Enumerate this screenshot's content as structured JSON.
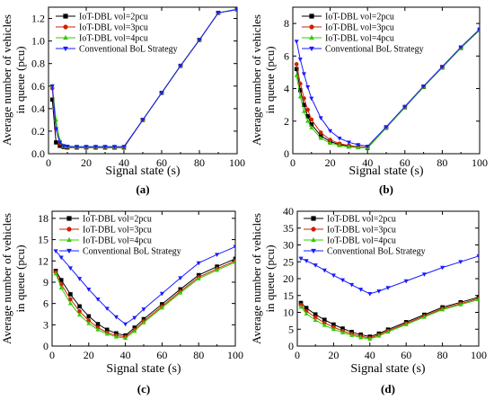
{
  "colors": {
    "s1": "#000000",
    "s2": "#cc2200",
    "s3": "#33cc00",
    "s4": "#1a1aff"
  },
  "chart_data": [
    {
      "panel_label": "(a)",
      "type": "line",
      "xlabel": "Signal state (s)",
      "ylabel_line1": "Average number of vehicles",
      "ylabel_line2": "in queue (pcu)",
      "xlim": [
        0,
        100
      ],
      "ylim": [
        0,
        1.3
      ],
      "xticks": [
        0,
        20,
        40,
        60,
        80,
        100
      ],
      "yticks": [
        0.0,
        0.2,
        0.4,
        0.6,
        0.8,
        1.0,
        1.2
      ],
      "ytick_labels": [
        "0.0",
        "0.2",
        "0.4",
        "0.6",
        "0.8",
        "1.0",
        "1.2"
      ],
      "legend_position": "top-left",
      "series": [
        {
          "name": "IoT-DBL vol=2pcu",
          "marker": "square",
          "color_key": "s1",
          "x": [
            2,
            4,
            6,
            8,
            10,
            15,
            20,
            25,
            30,
            35,
            40,
            50,
            60,
            70,
            80,
            90,
            100
          ],
          "y": [
            0.48,
            0.1,
            0.07,
            0.06,
            0.055,
            0.055,
            0.055,
            0.055,
            0.055,
            0.055,
            0.055,
            0.3,
            0.54,
            0.78,
            1.01,
            1.25,
            1.28
          ]
        },
        {
          "name": "IoT-DBL vol=3pcu",
          "marker": "circle",
          "color_key": "s2",
          "x": [
            2,
            4,
            6,
            8,
            10,
            15,
            20,
            25,
            30,
            35,
            40,
            50,
            60,
            70,
            80,
            90,
            100
          ],
          "y": [
            0.58,
            0.22,
            0.09,
            0.065,
            0.06,
            0.058,
            0.058,
            0.058,
            0.058,
            0.058,
            0.058,
            0.3,
            0.54,
            0.78,
            1.01,
            1.25,
            1.28
          ]
        },
        {
          "name": "IoT-DBL vol=4pcu",
          "marker": "triangle-up",
          "color_key": "s3",
          "x": [
            2,
            4,
            6,
            8,
            10,
            15,
            20,
            25,
            30,
            35,
            40,
            50,
            60,
            70,
            80,
            90,
            100
          ],
          "y": [
            0.6,
            0.3,
            0.12,
            0.07,
            0.062,
            0.06,
            0.06,
            0.06,
            0.06,
            0.06,
            0.06,
            0.3,
            0.54,
            0.78,
            1.01,
            1.25,
            1.28
          ]
        },
        {
          "name": "Conventional BoL Strategy",
          "marker": "triangle-down",
          "color_key": "s4",
          "x": [
            2,
            4,
            6,
            8,
            10,
            15,
            20,
            25,
            30,
            35,
            40,
            50,
            60,
            70,
            80,
            90,
            100
          ],
          "y": [
            0.6,
            0.22,
            0.1,
            0.07,
            0.065,
            0.063,
            0.063,
            0.063,
            0.063,
            0.063,
            0.063,
            0.3,
            0.54,
            0.78,
            1.01,
            1.25,
            1.28
          ]
        }
      ]
    },
    {
      "panel_label": "(b)",
      "type": "line",
      "xlabel": "Signal state (s)",
      "ylabel_line1": "Average number of vehicles",
      "ylabel_line2": "in queue (pcu)",
      "xlim": [
        0,
        100
      ],
      "ylim": [
        0,
        9
      ],
      "xticks": [
        0,
        20,
        40,
        60,
        80,
        100
      ],
      "yticks": [
        0,
        2,
        4,
        6,
        8
      ],
      "ytick_labels": [
        "0",
        "2",
        "4",
        "6",
        "8"
      ],
      "legend_position": "top-center",
      "series": [
        {
          "name": "IoT-DBL vol=2pcu",
          "marker": "square",
          "color_key": "s1",
          "x": [
            2,
            4,
            6,
            8,
            10,
            15,
            20,
            25,
            30,
            35,
            40,
            50,
            60,
            70,
            80,
            90,
            100
          ],
          "y": [
            5.2,
            3.9,
            3.0,
            2.3,
            1.8,
            1.1,
            0.75,
            0.55,
            0.45,
            0.4,
            0.35,
            1.6,
            2.85,
            4.1,
            5.3,
            6.5,
            7.6
          ]
        },
        {
          "name": "IoT-DBL vol=3pcu",
          "marker": "circle",
          "color_key": "s2",
          "x": [
            2,
            4,
            6,
            8,
            10,
            15,
            20,
            25,
            30,
            35,
            40,
            50,
            60,
            70,
            80,
            90,
            100
          ],
          "y": [
            5.5,
            4.3,
            3.4,
            2.7,
            2.1,
            1.3,
            0.85,
            0.62,
            0.5,
            0.43,
            0.37,
            1.6,
            2.85,
            4.1,
            5.3,
            6.5,
            7.6
          ]
        },
        {
          "name": "IoT-DBL vol=4pcu",
          "marker": "triangle-up",
          "color_key": "s3",
          "x": [
            2,
            4,
            6,
            8,
            10,
            15,
            20,
            25,
            30,
            35,
            40,
            50,
            60,
            70,
            80,
            90,
            100
          ],
          "y": [
            4.8,
            3.5,
            2.6,
            2.0,
            1.6,
            0.95,
            0.65,
            0.5,
            0.42,
            0.38,
            0.35,
            1.6,
            2.85,
            4.1,
            5.3,
            6.5,
            7.6
          ]
        },
        {
          "name": "Conventional BoL Strategy",
          "marker": "triangle-down",
          "color_key": "s4",
          "x": [
            2,
            4,
            6,
            8,
            10,
            15,
            20,
            25,
            30,
            35,
            40,
            50,
            60,
            70,
            80,
            90,
            100
          ],
          "y": [
            6.9,
            5.8,
            4.9,
            4.1,
            3.4,
            2.2,
            1.4,
            0.95,
            0.7,
            0.55,
            0.45,
            1.65,
            2.9,
            4.15,
            5.35,
            6.55,
            7.65
          ]
        }
      ]
    },
    {
      "panel_label": "(c)",
      "type": "line",
      "xlabel": "Signal state (s)",
      "ylabel_line1": "Average number of vehicles",
      "ylabel_line2": "in queue (pcu)",
      "xlim": [
        0,
        100
      ],
      "ylim": [
        0,
        19
      ],
      "xticks": [
        0,
        20,
        40,
        60,
        80,
        100
      ],
      "yticks": [
        0,
        3,
        6,
        9,
        12,
        15,
        18
      ],
      "ytick_labels": [
        "0",
        "3",
        "6",
        "9",
        "12",
        "15",
        "18"
      ],
      "legend_position": "top-center",
      "series": [
        {
          "name": "IoT-DBL vol=2pcu",
          "marker": "square",
          "color_key": "s1",
          "x": [
            2,
            5,
            10,
            15,
            20,
            25,
            30,
            35,
            40,
            45,
            50,
            60,
            70,
            80,
            90,
            100
          ],
          "y": [
            10.6,
            9.3,
            7.3,
            5.6,
            4.2,
            3.1,
            2.3,
            1.8,
            1.5,
            2.6,
            3.8,
            5.9,
            8.0,
            10.0,
            11.2,
            12.3
          ]
        },
        {
          "name": "IoT-DBL vol=3pcu",
          "marker": "circle",
          "color_key": "s2",
          "x": [
            2,
            5,
            10,
            15,
            20,
            25,
            30,
            35,
            40,
            45,
            50,
            60,
            70,
            80,
            90,
            100
          ],
          "y": [
            10.4,
            8.7,
            6.6,
            4.9,
            3.6,
            2.6,
            1.9,
            1.5,
            1.3,
            2.3,
            3.5,
            5.6,
            7.7,
            9.7,
            10.9,
            12.0
          ]
        },
        {
          "name": "IoT-DBL vol=4pcu",
          "marker": "triangle-up",
          "color_key": "s3",
          "x": [
            2,
            5,
            10,
            15,
            20,
            25,
            30,
            35,
            40,
            45,
            50,
            60,
            70,
            80,
            90,
            100
          ],
          "y": [
            10.2,
            8.2,
            6.0,
            4.4,
            3.2,
            2.3,
            1.7,
            1.3,
            1.1,
            2.1,
            3.3,
            5.4,
            7.5,
            9.5,
            10.7,
            11.8
          ]
        },
        {
          "name": "Conventional BoL Strategy",
          "marker": "triangle-down",
          "color_key": "s4",
          "x": [
            2,
            5,
            10,
            15,
            20,
            25,
            30,
            35,
            40,
            45,
            50,
            60,
            70,
            80,
            90,
            100
          ],
          "y": [
            13.4,
            12.5,
            11.0,
            9.5,
            8.0,
            6.6,
            5.3,
            4.1,
            3.1,
            4.0,
            5.2,
            7.4,
            9.6,
            11.7,
            12.9,
            14.0
          ]
        }
      ]
    },
    {
      "panel_label": "(d)",
      "type": "line",
      "xlabel": "Signal state (s)",
      "ylabel_line1": "Average number of vehicles",
      "ylabel_line2": "in queue (pcu)",
      "xlim": [
        0,
        100
      ],
      "ylim": [
        0,
        40
      ],
      "xticks": [
        0,
        20,
        40,
        60,
        80,
        100
      ],
      "yticks": [
        0,
        5,
        10,
        15,
        20,
        25,
        30,
        35,
        40
      ],
      "ytick_labels": [
        "0",
        "5",
        "10",
        "15",
        "20",
        "25",
        "30",
        "35",
        "40"
      ],
      "legend_position": "top-center",
      "series": [
        {
          "name": "IoT-DBL vol=2pcu",
          "marker": "square",
          "color_key": "s1",
          "x": [
            2,
            5,
            10,
            15,
            20,
            25,
            30,
            35,
            40,
            45,
            50,
            60,
            70,
            80,
            90,
            100
          ],
          "y": [
            12.8,
            11.3,
            9.4,
            7.8,
            6.4,
            5.2,
            4.2,
            3.4,
            2.8,
            3.7,
            4.9,
            7.1,
            9.3,
            11.5,
            13.0,
            14.5
          ]
        },
        {
          "name": "IoT-DBL vol=3pcu",
          "marker": "circle",
          "color_key": "s2",
          "x": [
            2,
            5,
            10,
            15,
            20,
            25,
            30,
            35,
            40,
            45,
            50,
            60,
            70,
            80,
            90,
            100
          ],
          "y": [
            12.2,
            10.4,
            8.5,
            6.9,
            5.6,
            4.5,
            3.6,
            2.9,
            2.4,
            3.3,
            4.5,
            6.7,
            8.9,
            11.1,
            12.6,
            14.1
          ]
        },
        {
          "name": "IoT-DBL vol=4pcu",
          "marker": "triangle-up",
          "color_key": "s3",
          "x": [
            2,
            5,
            10,
            15,
            20,
            25,
            30,
            35,
            40,
            45,
            50,
            60,
            70,
            80,
            90,
            100
          ],
          "y": [
            11.6,
            9.6,
            7.7,
            6.2,
            5.0,
            4.0,
            3.2,
            2.5,
            2.1,
            3.0,
            4.2,
            6.4,
            8.6,
            10.8,
            12.3,
            13.8
          ]
        },
        {
          "name": "Conventional BoL Strategy",
          "marker": "triangle-down",
          "color_key": "s4",
          "x": [
            2,
            5,
            10,
            15,
            20,
            25,
            30,
            35,
            40,
            45,
            50,
            60,
            70,
            80,
            90,
            100
          ],
          "y": [
            26.0,
            25.3,
            24.0,
            22.5,
            21.0,
            19.6,
            18.2,
            16.8,
            15.5,
            16.3,
            17.3,
            19.3,
            21.3,
            23.3,
            25.0,
            26.7
          ]
        }
      ]
    }
  ]
}
